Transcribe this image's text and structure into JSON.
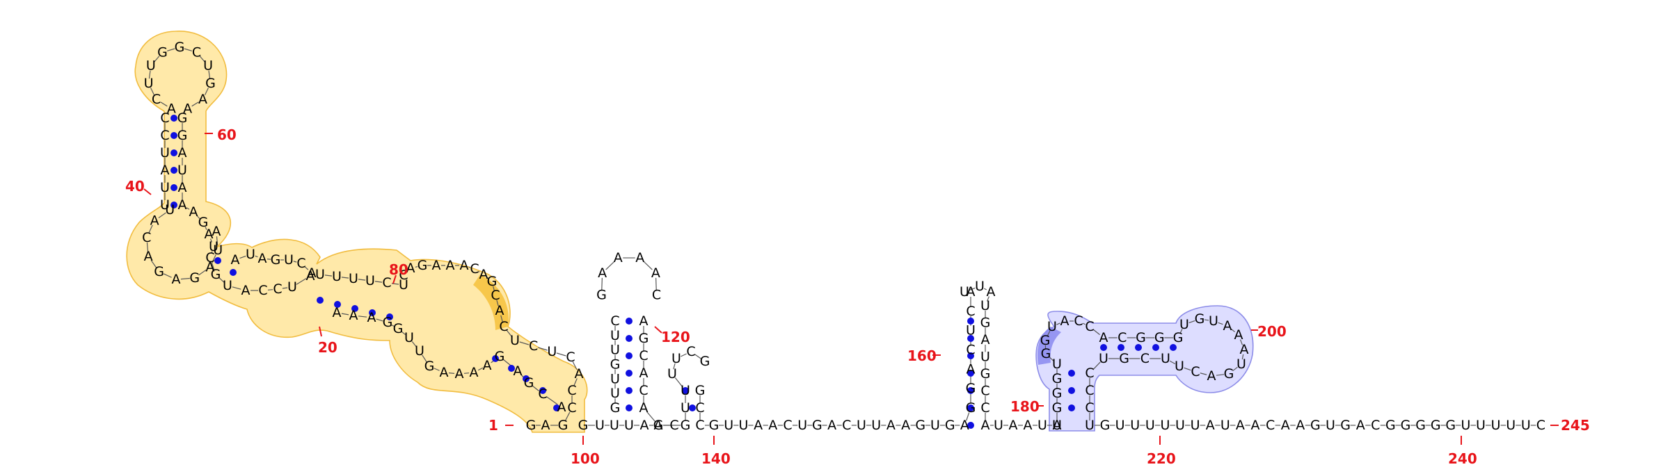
{
  "colors": {
    "highlight_orange": "#ffd96a",
    "highlight_orange_stroke": "#f0b52a",
    "highlight_orange_dark": "#f3b92a",
    "highlight_blue": "#d6d6ff",
    "highlight_blue_stroke": "#8080e6",
    "highlight_blue_dark": "#8a8af0",
    "pair_dot": "#1010e0",
    "number_label": "#e8141a"
  },
  "diagram": {
    "length_label": "245",
    "numbers": [
      "1",
      "20",
      "40",
      "60",
      "80",
      "100",
      "120",
      "140",
      "160",
      "180",
      "200",
      "220",
      "240",
      "245"
    ]
  }
}
